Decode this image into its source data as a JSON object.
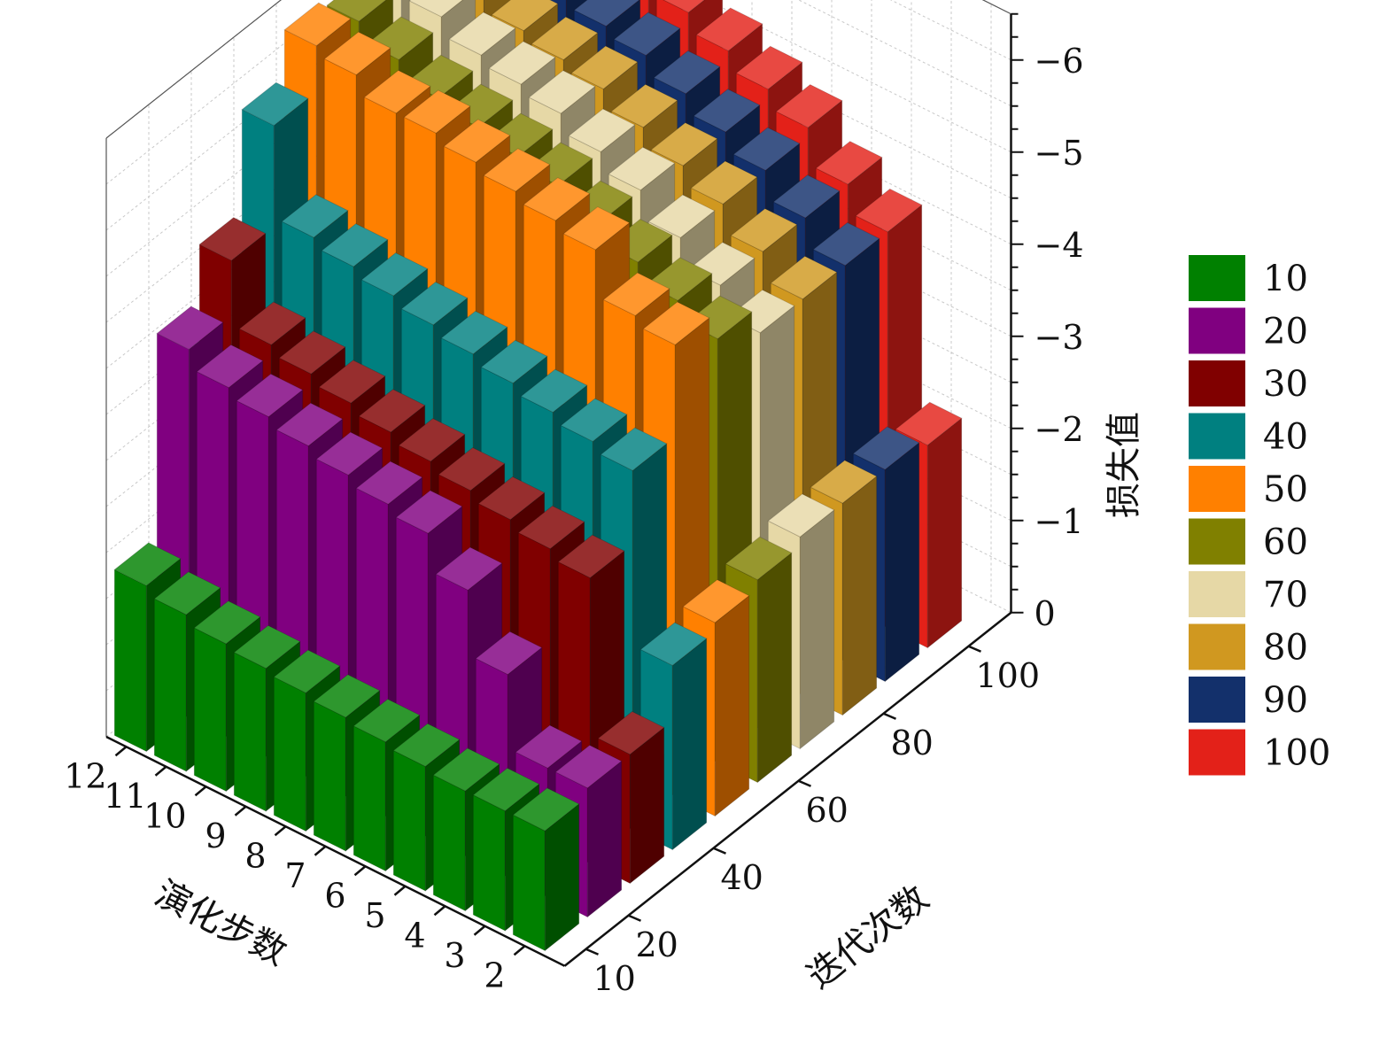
{
  "chart_data": {
    "type": "bar3d",
    "x_axis": {
      "label": "演化步数",
      "ticks": [
        "12",
        "11",
        "10",
        "9",
        "8",
        "7",
        "6",
        "5",
        "4",
        "3",
        "2"
      ]
    },
    "y_axis": {
      "label": "迭代次数",
      "ticks": [
        "10",
        "20",
        "40",
        "60",
        "80",
        "100"
      ]
    },
    "z_axis": {
      "label": "损失值",
      "ticks": [
        "0",
        "−1",
        "−2",
        "−3",
        "−4",
        "−5",
        "−6"
      ],
      "range": [
        0,
        -6.5
      ],
      "reversed": true
    },
    "categories": [
      "12",
      "11",
      "10",
      "9",
      "8",
      "7",
      "6",
      "5",
      "4",
      "3",
      "2"
    ],
    "series": [
      {
        "name": "10",
        "color": "#008000",
        "values": [
          -1.8,
          -1.7,
          -1.6,
          -1.55,
          -1.5,
          -1.45,
          -1.4,
          -1.35,
          -1.3,
          -1.3,
          -1.3
        ]
      },
      {
        "name": "20",
        "color": "#800080",
        "values": [
          -4.0,
          -3.8,
          -3.7,
          -3.6,
          -3.5,
          -3.4,
          -3.3,
          -2.9,
          -2.2,
          -1.4,
          -1.4
        ]
      },
      {
        "name": "30",
        "color": "#800000",
        "values": [
          -4.6,
          -3.9,
          -3.8,
          -3.7,
          -3.6,
          -3.5,
          -3.4,
          -3.3,
          -3.2,
          -3.1,
          -1.4
        ]
      },
      {
        "name": "40",
        "color": "#008080",
        "values": [
          -5.7,
          -4.7,
          -4.6,
          -4.5,
          -4.4,
          -4.3,
          -4.2,
          -4.1,
          -4.0,
          -3.9,
          -2.0
        ]
      },
      {
        "name": "50",
        "color": "#ff8000",
        "values": [
          -6.2,
          -6.1,
          -5.9,
          -5.9,
          -5.8,
          -5.7,
          -5.6,
          -5.5,
          -5.0,
          -4.9,
          -2.1
        ]
      },
      {
        "name": "60",
        "color": "#808000",
        "values": [
          -6.1,
          -5.9,
          -5.7,
          -5.6,
          -5.5,
          -5.4,
          -5.2,
          -5.0,
          -4.8,
          -4.6,
          -2.2
        ]
      },
      {
        "name": "70",
        "color": "#e6d8a6",
        "values": [
          -6.2,
          -6.0,
          -5.8,
          -5.7,
          -5.6,
          -5.4,
          -5.2,
          -4.9,
          -4.6,
          -4.3,
          -2.3
        ]
      },
      {
        "name": "80",
        "color": "#d09820",
        "values": [
          -6.1,
          -5.9,
          -5.7,
          -5.6,
          -5.5,
          -5.3,
          -5.1,
          -4.9,
          -4.6,
          -4.3,
          -2.3
        ]
      },
      {
        "name": "90",
        "color": "#13306b",
        "values": [
          -6.1,
          -5.9,
          -5.7,
          -5.6,
          -5.5,
          -5.3,
          -5.1,
          -4.9,
          -4.6,
          -4.3,
          -2.3
        ]
      },
      {
        "name": "100",
        "color": "#e32119",
        "values": [
          -6.2,
          -6.0,
          -5.8,
          -5.7,
          -5.6,
          -5.4,
          -5.2,
          -5.0,
          -4.6,
          -4.3,
          -2.2
        ]
      }
    ],
    "grid": true,
    "legend": "right"
  }
}
